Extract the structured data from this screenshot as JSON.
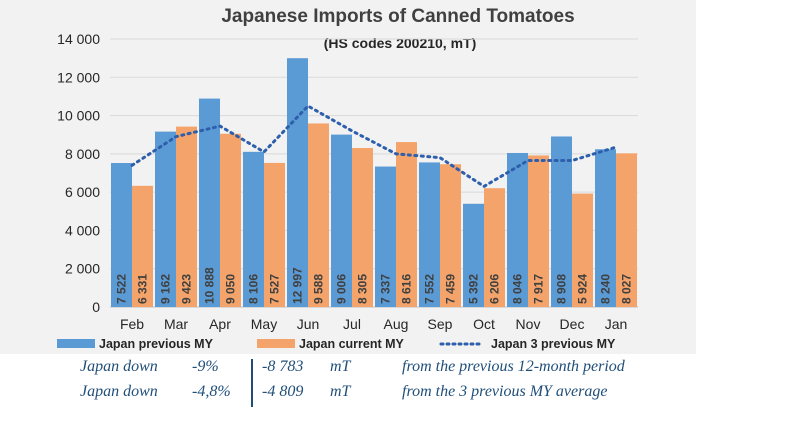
{
  "chart_data": {
    "type": "bar",
    "title": "Japanese Imports of Canned Tomatoes",
    "subtitle": "(HS codes 200210, mT)",
    "categories": [
      "Feb",
      "Mar",
      "Apr",
      "May",
      "Jun",
      "Jul",
      "Aug",
      "Sep",
      "Oct",
      "Nov",
      "Dec",
      "Jan"
    ],
    "series": [
      {
        "name": "Japan previous MY",
        "type": "bar",
        "color": "#5b9bd5",
        "values": [
          7522,
          9162,
          10888,
          8106,
          12997,
          9006,
          7337,
          7552,
          5392,
          8046,
          8908,
          8240
        ],
        "labels": [
          "7 522",
          "9 162",
          "10 888",
          "8 106",
          "12 997",
          "9 006",
          "7 337",
          "7 552",
          "5 392",
          "8 046",
          "8 908",
          "8 240"
        ]
      },
      {
        "name": "Japan current MY",
        "type": "bar",
        "color": "#f4a46a",
        "values": [
          6331,
          9423,
          9050,
          7527,
          9588,
          8305,
          8616,
          7459,
          6206,
          7917,
          5924,
          8027
        ],
        "labels": [
          "6 331",
          "9 423",
          "9 050",
          "7 527",
          "9 588",
          "8 305",
          "8 616",
          "7 459",
          "6 206",
          "7 917",
          "5 924",
          "8 027"
        ]
      },
      {
        "name": "Japan 3 previous MY",
        "type": "line",
        "style": "dotted",
        "color": "#2e5fac",
        "values": [
          7400,
          8900,
          9450,
          8100,
          10500,
          9200,
          8000,
          7800,
          6300,
          7650,
          7650,
          8350
        ]
      }
    ],
    "ylim": [
      0,
      14000
    ],
    "yticks": [
      "0",
      "2 000",
      "4 000",
      "6 000",
      "8 000",
      "10 000",
      "12 000",
      "14 000"
    ],
    "grid": true,
    "legend": "bottom"
  },
  "notes": [
    {
      "label": "Japan down",
      "pct": "-9%",
      "value": "-8 783",
      "unit": "mT",
      "desc": "from the previous 12-month period"
    },
    {
      "label": "Japan down",
      "pct": "-4,8%",
      "value": "-4 809",
      "unit": "mT",
      "desc": "from the 3 previous MY average"
    }
  ]
}
